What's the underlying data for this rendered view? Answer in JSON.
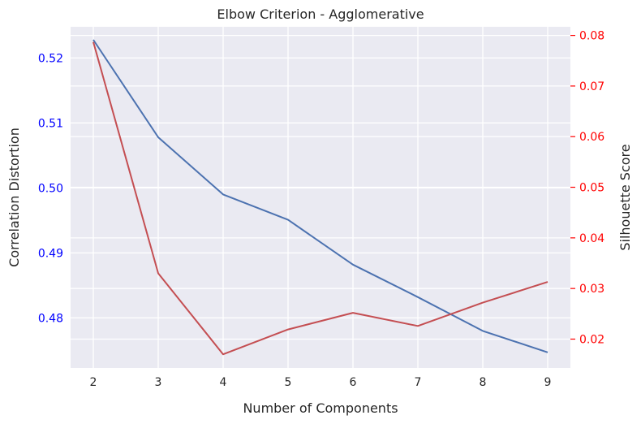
{
  "chart_data": {
    "type": "line",
    "title": "Elbow Criterion - Agglomerative",
    "xlabel": "Number of Components",
    "ylabel_left": "Correlation Distortion",
    "ylabel_right": "Silhouette Score",
    "x": [
      2,
      3,
      4,
      5,
      6,
      7,
      8,
      9
    ],
    "xlim": [
      1.65,
      9.35
    ],
    "x_ticks": [
      "2",
      "3",
      "4",
      "5",
      "6",
      "7",
      "8",
      "9"
    ],
    "ylim_left": [
      0.4723,
      0.5248
    ],
    "ylim_right": [
      0.0143,
      0.0817
    ],
    "left_ticks": [
      {
        "value": 0.48,
        "label": "0.48"
      },
      {
        "value": 0.49,
        "label": "0.49"
      },
      {
        "value": 0.5,
        "label": "0.50"
      },
      {
        "value": 0.51,
        "label": "0.51"
      },
      {
        "value": 0.52,
        "label": "0.52"
      }
    ],
    "right_ticks": [
      {
        "value": 0.02,
        "label": "0.02"
      },
      {
        "value": 0.03,
        "label": "0.03"
      },
      {
        "value": 0.04,
        "label": "0.04"
      },
      {
        "value": 0.05,
        "label": "0.05"
      },
      {
        "value": 0.06,
        "label": "0.06"
      },
      {
        "value": 0.07,
        "label": "0.07"
      },
      {
        "value": 0.08,
        "label": "0.08"
      }
    ],
    "series": [
      {
        "axis": "left",
        "color": "#4c72b0",
        "values": [
          0.5228,
          0.5078,
          0.499,
          0.4951,
          0.4882,
          0.4832,
          0.478,
          0.4747
        ]
      },
      {
        "axis": "right",
        "color": "#c44e52",
        "values": [
          0.0787,
          0.033,
          0.017,
          0.0219,
          0.0252,
          0.0226,
          0.0272,
          0.0313
        ]
      }
    ],
    "grid": true,
    "colors": {
      "background": "#eaeaf2",
      "grid": "#ffffff",
      "left_tick_labels": "#0000ff",
      "right_tick_labels": "#ff0000",
      "text": "#262626"
    }
  }
}
